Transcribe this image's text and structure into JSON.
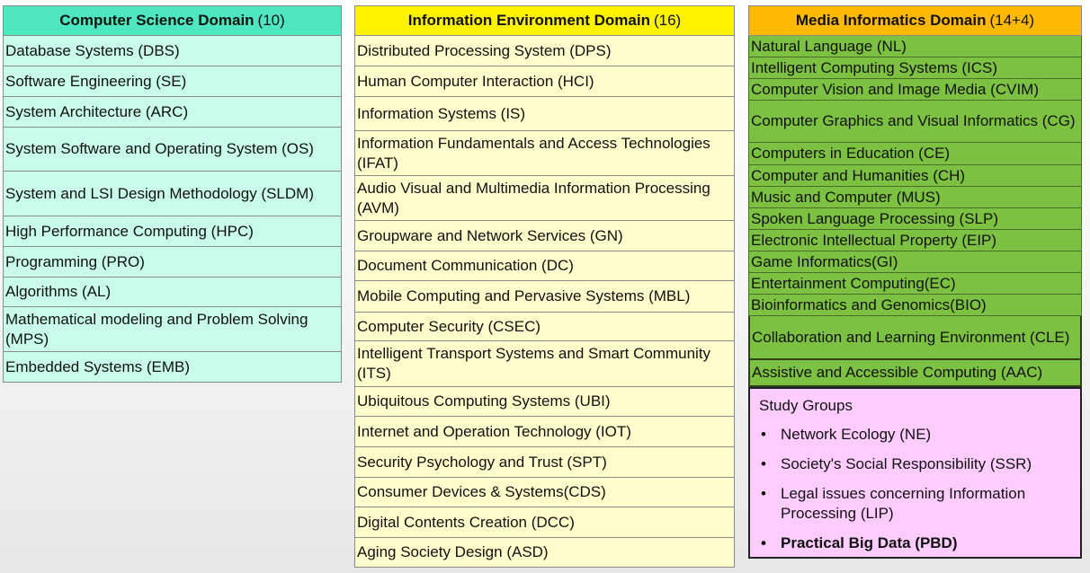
{
  "computer_science": {
    "title": "Computer Science Domain",
    "count": "(10)",
    "items": [
      "Database Systems (DBS)",
      "Software Engineering (SE)",
      "System Architecture (ARC)",
      "System Software and Operating System (OS)",
      "System and LSI Design Methodology (SLDM)",
      "High Performance Computing (HPC)",
      "Programming (PRO)",
      "Algorithms (AL)",
      "Mathematical modeling and Problem Solving (MPS)",
      "Embedded Systems (EMB)"
    ]
  },
  "information_environment": {
    "title": "Information Environment Domain",
    "count": "(16)",
    "items": [
      "Distributed Processing System (DPS)",
      "Human Computer Interaction (HCI)",
      "Information Systems (IS)",
      "Information Fundamentals and Access Technologies (IFAT)",
      "Audio Visual and Multimedia Information Processing (AVM)",
      "Groupware and Network Services (GN)",
      "Document Communication (DC)",
      "Mobile Computing and Pervasive Systems (MBL)",
      "Computer Security (CSEC)",
      "Intelligent Transport Systems and Smart Community (ITS)",
      "Ubiquitous Computing Systems (UBI)",
      "Internet and Operation Technology (IOT)",
      "Security Psychology and Trust (SPT)",
      "Consumer Devices & Systems(CDS)",
      "Digital Contents Creation (DCC)",
      "Aging Society Design (ASD)"
    ]
  },
  "media_informatics": {
    "title": "Media Informatics Domain",
    "count": "(14+4)",
    "items": [
      "Natural Language (NL)",
      "Intelligent Computing Systems (ICS)",
      "Computer Vision and Image Media (CVIM)",
      "Computer Graphics and Visual Informatics (CG)",
      "Computers in Education (CE)",
      "Computer and Humanities (CH)",
      "Music and Computer (MUS)",
      "Spoken Language Processing (SLP)",
      "Electronic Intellectual Property (EIP)",
      "Game Informatics(GI)",
      "Entertainment Computing(EC)",
      "Bioinformatics and Genomics(BIO)",
      "Collaboration and Learning Environment (CLE)",
      "Assistive and Accessible Computing (AAC)"
    ]
  },
  "study_groups": {
    "title": "Study Groups",
    "items": [
      "Network Ecology (NE)",
      "Society's Social Responsibility (SSR)",
      "Legal issues concerning Information Processing (LIP)",
      "Practical Big Data (PBD)"
    ]
  }
}
